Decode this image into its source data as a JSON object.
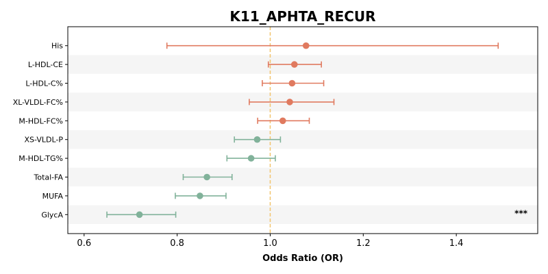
{
  "chart_data": {
    "type": "forest",
    "title": "K11_APHTA_RECUR",
    "xlabel": "Odds Ratio (OR)",
    "xlim": [
      0.565,
      1.575
    ],
    "xticks": [
      0.6,
      0.8,
      1.0,
      1.2,
      1.4
    ],
    "xtick_labels": [
      "0.6",
      "0.8",
      "1.0",
      "1.2",
      "1.4"
    ],
    "reference_line": 1.0,
    "grid": false,
    "colors": {
      "positive": "#e07a5f",
      "negative": "#81b29a",
      "reference_line": "#f2c46d",
      "band": "#f5f5f5"
    },
    "rows": [
      {
        "label": "His",
        "or": 1.077,
        "lower": 0.778,
        "upper": 1.49,
        "direction": "positive",
        "significance": ""
      },
      {
        "label": "L-HDL-CE",
        "or": 1.052,
        "lower": 0.996,
        "upper": 1.11,
        "direction": "positive",
        "significance": ""
      },
      {
        "label": "L-HDL-C%",
        "or": 1.047,
        "lower": 0.983,
        "upper": 1.115,
        "direction": "positive",
        "significance": ""
      },
      {
        "label": "XL-VLDL-FC%",
        "or": 1.042,
        "lower": 0.955,
        "upper": 1.137,
        "direction": "positive",
        "significance": ""
      },
      {
        "label": "M-HDL-FC%",
        "or": 1.027,
        "lower": 0.973,
        "upper": 1.084,
        "direction": "positive",
        "significance": ""
      },
      {
        "label": "XS-VLDL-P",
        "or": 0.972,
        "lower": 0.923,
        "upper": 1.022,
        "direction": "negative",
        "significance": ""
      },
      {
        "label": "M-HDL-TG%",
        "or": 0.959,
        "lower": 0.907,
        "upper": 1.011,
        "direction": "negative",
        "significance": ""
      },
      {
        "label": "Total-FA",
        "or": 0.864,
        "lower": 0.813,
        "upper": 0.918,
        "direction": "negative",
        "significance": ""
      },
      {
        "label": "MUFA",
        "or": 0.849,
        "lower": 0.796,
        "upper": 0.905,
        "direction": "negative",
        "significance": ""
      },
      {
        "label": "GlycA",
        "or": 0.719,
        "lower": 0.649,
        "upper": 0.797,
        "direction": "negative",
        "significance": "***"
      }
    ]
  }
}
